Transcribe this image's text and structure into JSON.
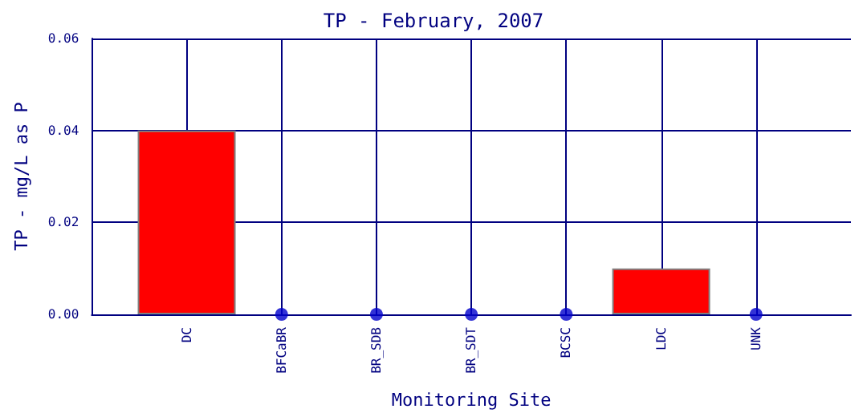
{
  "chart_data": {
    "type": "bar",
    "title": "TP - February, 2007",
    "xlabel": "Monitoring Site",
    "ylabel": "TP - mg/L as P",
    "categories": [
      "DC",
      "BFCaBR",
      "BR_SDB",
      "BR_SDT",
      "BCSC",
      "LDC",
      "UNK"
    ],
    "series": [
      {
        "color": "#ff0000",
        "values": [
          0.04,
          0,
          0,
          0,
          0,
          0.01,
          0
        ]
      },
      {
        "type": "scatter",
        "color": "#0000cc",
        "x": [
          "BFCaBR",
          "BR_SDB",
          "BR_SDT",
          "BCSC",
          "UNK"
        ],
        "values": [
          0,
          0,
          0,
          0,
          0
        ]
      }
    ],
    "ylim": [
      0,
      0.06
    ],
    "yticks": [
      {
        "value": 0,
        "label": "0.00"
      },
      {
        "value": 0.02,
        "label": "0.02"
      },
      {
        "value": 0.04,
        "label": "0.04"
      },
      {
        "value": 0.06,
        "label": "0.06"
      }
    ],
    "grid": true,
    "marker": "circle"
  }
}
